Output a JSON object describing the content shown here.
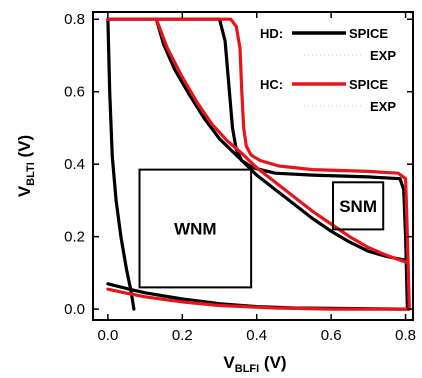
{
  "chart_data": {
    "type": "line",
    "title": "",
    "xlabel": {
      "main": "V",
      "sub": "BLFI",
      "unit": " (V)"
    },
    "ylabel": {
      "main": "V",
      "sub": "BLTI",
      "unit": " (V)"
    },
    "xlim": [
      -0.04,
      0.82
    ],
    "ylim": [
      -0.03,
      0.82
    ],
    "xticks": [
      "0.0",
      "0.2",
      "0.4",
      "0.6",
      "0.8"
    ],
    "yticks": [
      "0.0",
      "0.2",
      "0.4",
      "0.6",
      "0.8"
    ],
    "grid": false,
    "legend_position": "top-right",
    "legend": {
      "groups": [
        {
          "label": "HD:",
          "color": "#000000",
          "entries": [
            "SPICE",
            "EXP"
          ]
        },
        {
          "label": "HC:",
          "color": "#e8141b",
          "entries": [
            "SPICE",
            "EXP"
          ]
        }
      ]
    },
    "series": [
      {
        "key": "hd-spice-a",
        "group": "HD",
        "color": "#000000",
        "points": [
          [
            0.0,
            0.8
          ],
          [
            0.005,
            0.6
          ],
          [
            0.012,
            0.42
          ],
          [
            0.022,
            0.3
          ],
          [
            0.035,
            0.2
          ],
          [
            0.05,
            0.11
          ],
          [
            0.062,
            0.05
          ],
          [
            0.07,
            0.0
          ]
        ]
      },
      {
        "key": "hd-spice-b",
        "group": "HD",
        "color": "#000000",
        "points": [
          [
            0.0,
            0.07
          ],
          [
            0.05,
            0.057
          ],
          [
            0.1,
            0.045
          ],
          [
            0.2,
            0.028
          ],
          [
            0.3,
            0.015
          ],
          [
            0.4,
            0.007
          ],
          [
            0.5,
            0.003
          ],
          [
            0.8,
            0.0
          ]
        ]
      },
      {
        "key": "hd-spice-c",
        "group": "HD",
        "color": "#000000",
        "points": [
          [
            0.0,
            0.8
          ],
          [
            0.3,
            0.8
          ],
          [
            0.315,
            0.74
          ],
          [
            0.325,
            0.62
          ],
          [
            0.335,
            0.5
          ],
          [
            0.345,
            0.44
          ],
          [
            0.36,
            0.41
          ],
          [
            0.39,
            0.39
          ],
          [
            0.45,
            0.375
          ],
          [
            0.55,
            0.37
          ],
          [
            0.7,
            0.365
          ],
          [
            0.785,
            0.36
          ],
          [
            0.795,
            0.33
          ],
          [
            0.8,
            0.2
          ],
          [
            0.805,
            0.0
          ]
        ]
      },
      {
        "key": "hd-spice-d",
        "group": "HD",
        "color": "#000000",
        "points": [
          [
            0.13,
            0.8
          ],
          [
            0.15,
            0.73
          ],
          [
            0.18,
            0.66
          ],
          [
            0.22,
            0.59
          ],
          [
            0.26,
            0.525
          ],
          [
            0.3,
            0.47
          ],
          [
            0.35,
            0.42
          ],
          [
            0.4,
            0.37
          ],
          [
            0.45,
            0.33
          ],
          [
            0.5,
            0.29
          ],
          [
            0.55,
            0.25
          ],
          [
            0.6,
            0.215
          ],
          [
            0.65,
            0.185
          ],
          [
            0.7,
            0.16
          ],
          [
            0.75,
            0.145
          ],
          [
            0.8,
            0.135
          ]
        ]
      },
      {
        "key": "hc-spice-a",
        "group": "HC",
        "color": "#e8141b",
        "points": [
          [
            0.0,
            0.055
          ],
          [
            0.05,
            0.044
          ],
          [
            0.1,
            0.034
          ],
          [
            0.2,
            0.02
          ],
          [
            0.3,
            0.01
          ],
          [
            0.45,
            0.003
          ],
          [
            0.6,
            0.0
          ],
          [
            0.81,
            0.0
          ]
        ]
      },
      {
        "key": "hc-spice-b",
        "group": "HC",
        "color": "#e8141b",
        "points": [
          [
            0.0,
            0.8
          ],
          [
            0.33,
            0.8
          ],
          [
            0.345,
            0.78
          ],
          [
            0.355,
            0.72
          ],
          [
            0.36,
            0.6
          ],
          [
            0.365,
            0.5
          ],
          [
            0.372,
            0.45
          ],
          [
            0.385,
            0.425
          ],
          [
            0.41,
            0.41
          ],
          [
            0.46,
            0.395
          ],
          [
            0.55,
            0.385
          ],
          [
            0.7,
            0.38
          ],
          [
            0.78,
            0.375
          ],
          [
            0.8,
            0.36
          ],
          [
            0.805,
            0.2
          ],
          [
            0.81,
            0.0
          ]
        ]
      },
      {
        "key": "hc-spice-c",
        "group": "HC",
        "color": "#e8141b",
        "points": [
          [
            0.13,
            0.8
          ],
          [
            0.16,
            0.72
          ],
          [
            0.2,
            0.64
          ],
          [
            0.24,
            0.57
          ],
          [
            0.28,
            0.51
          ],
          [
            0.32,
            0.465
          ],
          [
            0.36,
            0.43
          ],
          [
            0.4,
            0.39
          ],
          [
            0.45,
            0.35
          ],
          [
            0.5,
            0.31
          ],
          [
            0.55,
            0.27
          ],
          [
            0.6,
            0.235
          ],
          [
            0.65,
            0.2
          ],
          [
            0.7,
            0.17
          ],
          [
            0.75,
            0.148
          ],
          [
            0.8,
            0.13
          ]
        ]
      }
    ],
    "annotations": [
      {
        "key": "wnm",
        "text": "WNM",
        "box": {
          "x0": 0.085,
          "y0": 0.06,
          "x1": 0.385,
          "y1": 0.385
        }
      },
      {
        "key": "snm",
        "text": "SNM",
        "box": {
          "x0": 0.605,
          "y0": 0.22,
          "x1": 0.74,
          "y1": 0.35
        }
      }
    ]
  }
}
